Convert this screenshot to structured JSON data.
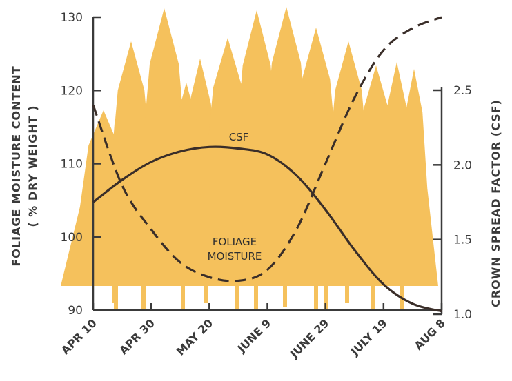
{
  "chart_data": {
    "type": "line",
    "xlabel": "",
    "x_ticks": [
      "APR 10",
      "APR 30",
      "MAY 20",
      "JUNE 9",
      "JUNE 29",
      "JULY 19",
      "AUG 8"
    ],
    "x_range_days": [
      0,
      120
    ],
    "left_axis": {
      "label_line1": "FOLIAGE MOISTURE CONTENT",
      "label_line2": "( % DRY WEIGHT )",
      "ticks": [
        "90",
        "100",
        "110",
        "120",
        "130"
      ],
      "ylim": [
        90,
        130
      ]
    },
    "right_axis": {
      "label": "CROWN SPREAD FACTOR (CSF)",
      "ticks": [
        "1.0",
        "1.5",
        "2.0",
        "2.5"
      ],
      "ylim": [
        1.0,
        2.5
      ]
    },
    "series": [
      {
        "name": "CSF",
        "axis": "right",
        "style": "solid",
        "x_days": [
          0,
          10,
          20,
          30,
          40,
          50,
          60,
          70,
          80,
          90,
          100,
          110,
          120
        ],
        "values": [
          1.75,
          1.9,
          2.02,
          2.09,
          2.12,
          2.11,
          2.07,
          1.93,
          1.7,
          1.43,
          1.2,
          1.07,
          1.02
        ]
      },
      {
        "name": "FOLIAGE MOISTURE",
        "axis": "left",
        "style": "dashed",
        "x_days": [
          0,
          10,
          20,
          30,
          40,
          50,
          60,
          70,
          80,
          90,
          100,
          110,
          120
        ],
        "values": [
          118,
          107,
          101,
          96.5,
          94.5,
          94,
          95.5,
          101,
          110,
          119,
          125.5,
          128.5,
          130
        ]
      }
    ],
    "annotations": [
      "CSF",
      "FOLIAGE",
      "MOISTURE"
    ],
    "colors": {
      "background_trees": "#f5c15c",
      "curves": "#3a2e29",
      "axes": "#3a3a3a"
    }
  }
}
